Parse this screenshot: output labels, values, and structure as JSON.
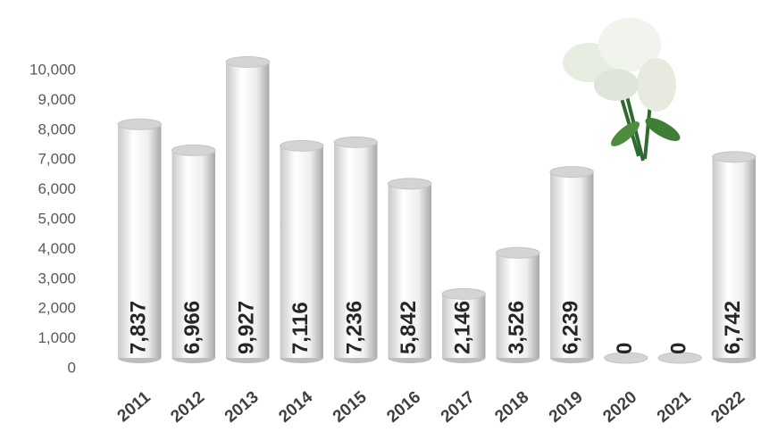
{
  "chart_data": {
    "type": "bar",
    "categories": [
      "2011",
      "2012",
      "2013",
      "2014",
      "2015",
      "2016",
      "2017",
      "2018",
      "2019",
      "2020",
      "2021",
      "2022"
    ],
    "values": [
      7837,
      6966,
      9927,
      7116,
      7236,
      5842,
      2146,
      3526,
      6239,
      0,
      0,
      6742
    ],
    "value_labels": [
      "7,837",
      "6,966",
      "9,927",
      "7,116",
      "7,236",
      "5,842",
      "2,146",
      "3,526",
      "6,239",
      "0",
      "0",
      "6,742"
    ],
    "color": "#e6e6e6",
    "ylim": [
      0,
      10000
    ],
    "yticks": [
      0,
      {
        "value": 1000,
        "label": "1,000"
      },
      {
        "value": 2000,
        "label": "2,000"
      },
      {
        "value": 3000,
        "label": "3,000"
      },
      {
        "value": 4000,
        "label": "4,000"
      },
      {
        "value": 5000,
        "label": "5,000"
      },
      {
        "value": 6000,
        "label": "6,000"
      },
      {
        "value": 7000,
        "label": "7,000"
      },
      {
        "value": 8000,
        "label": "8,000"
      },
      {
        "value": 9000,
        "label": "9,000"
      },
      {
        "value": 10000,
        "label": "10,000"
      }
    ],
    "grid": false
  }
}
